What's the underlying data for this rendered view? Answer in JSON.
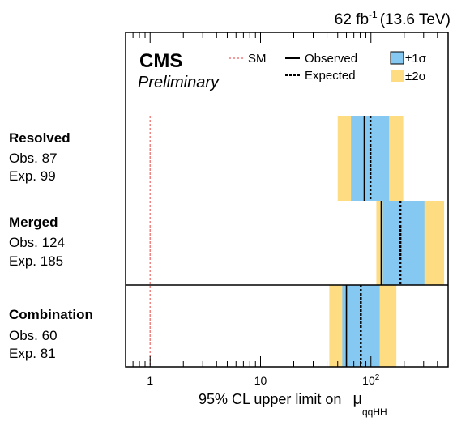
{
  "chart_data": {
    "type": "limit-plot",
    "lumi_label": "62 fb",
    "lumi_exponent": "-1",
    "energy_label": "(13.6 TeV)",
    "experiment": "CMS",
    "status": "Preliminary",
    "xlabel": "95% CL upper limit on",
    "xlabel_symbol": "μ",
    "xlabel_subscript": "qqHH",
    "x_scale": "log",
    "xlim": [
      0.6,
      500
    ],
    "xticks": [
      {
        "value": 1,
        "label": "1"
      },
      {
        "value": 10,
        "label": "10"
      },
      {
        "value": 100,
        "label": "10",
        "exponent": "2"
      }
    ],
    "sm_reference": 1,
    "legend": {
      "sm": "SM",
      "observed": "Observed",
      "expected": "Expected",
      "one_sigma": "±1σ",
      "two_sigma": "±2σ"
    },
    "colors": {
      "one_sigma": "#85c8f2",
      "two_sigma": "#fddc82",
      "sm": "#f07a7a",
      "line": "#000000"
    },
    "categories": [
      {
        "name": "Resolved",
        "obs_text": "Obs. 87",
        "exp_text": "Exp. 99",
        "observed": 87,
        "expected": 99,
        "minus2": 50,
        "minus1": 66,
        "plus1": 146,
        "plus2": 196
      },
      {
        "name": "Merged",
        "obs_text": "Obs. 124",
        "exp_text": "Exp. 185",
        "observed": 124,
        "expected": 185,
        "minus2": 112,
        "minus1": 128,
        "plus1": 305,
        "plus2": 460
      },
      {
        "name": "Combination",
        "obs_text": "Obs. 60",
        "exp_text": "Exp. 81",
        "observed": 60,
        "expected": 81,
        "minus2": 42,
        "minus1": 55,
        "plus1": 120,
        "plus2": 170
      }
    ]
  }
}
